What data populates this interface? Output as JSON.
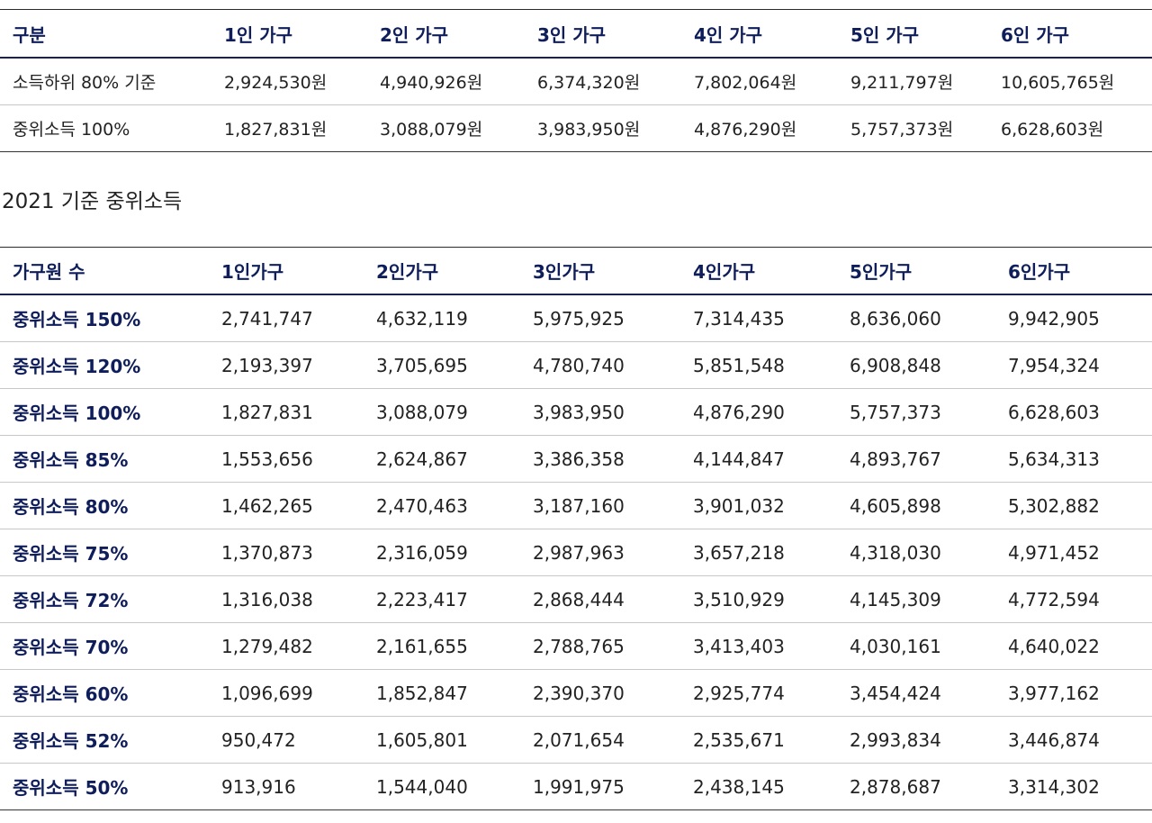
{
  "colors": {
    "header_text": "#0f1e5a",
    "header_rule": "#1a2152",
    "body_text": "#222222",
    "row_rule": "#c8c8c8"
  },
  "table1": {
    "headers": [
      "구분",
      "1인 가구",
      "2인 가구",
      "3인 가구",
      "4인 가구",
      "5인 가구",
      "6인 가구"
    ],
    "rows": [
      [
        "소득하위 80% 기준",
        "2,924,530원",
        "4,940,926원",
        "6,374,320원",
        "7,802,064원",
        "9,211,797원",
        "10,605,765원"
      ],
      [
        "중위소득 100%",
        "1,827,831원",
        "3,088,079원",
        "3,983,950원",
        "4,876,290원",
        "5,757,373원",
        "6,628,603원"
      ]
    ]
  },
  "caption": "2021 기준 중위소득",
  "table2": {
    "headers": [
      "가구원 수",
      "1인가구",
      "2인가구",
      "3인가구",
      "4인가구",
      "5인가구",
      "6인가구"
    ],
    "rows": [
      [
        "중위소득 150%",
        "2,741,747",
        "4,632,119",
        "5,975,925",
        "7,314,435",
        "8,636,060",
        "9,942,905"
      ],
      [
        "중위소득 120%",
        "2,193,397",
        "3,705,695",
        "4,780,740",
        "5,851,548",
        "6,908,848",
        "7,954,324"
      ],
      [
        "중위소득 100%",
        "1,827,831",
        "3,088,079",
        "3,983,950",
        "4,876,290",
        "5,757,373",
        "6,628,603"
      ],
      [
        "중위소득 85%",
        "1,553,656",
        "2,624,867",
        "3,386,358",
        "4,144,847",
        "4,893,767",
        "5,634,313"
      ],
      [
        "중위소득 80%",
        "1,462,265",
        "2,470,463",
        "3,187,160",
        "3,901,032",
        "4,605,898",
        "5,302,882"
      ],
      [
        "중위소득 75%",
        "1,370,873",
        "2,316,059",
        "2,987,963",
        "3,657,218",
        "4,318,030",
        "4,971,452"
      ],
      [
        "중위소득 72%",
        "1,316,038",
        "2,223,417",
        "2,868,444",
        "3,510,929",
        "4,145,309",
        "4,772,594"
      ],
      [
        "중위소득 70%",
        "1,279,482",
        "2,161,655",
        "2,788,765",
        "3,413,403",
        "4,030,161",
        "4,640,022"
      ],
      [
        "중위소득 60%",
        "1,096,699",
        "1,852,847",
        "2,390,370",
        "2,925,774",
        "3,454,424",
        "3,977,162"
      ],
      [
        "중위소득 52%",
        "950,472",
        "1,605,801",
        "2,071,654",
        "2,535,671",
        "2,993,834",
        "3,446,874"
      ],
      [
        "중위소득 50%",
        "913,916",
        "1,544,040",
        "1,991,975",
        "2,438,145",
        "2,878,687",
        "3,314,302"
      ]
    ]
  }
}
